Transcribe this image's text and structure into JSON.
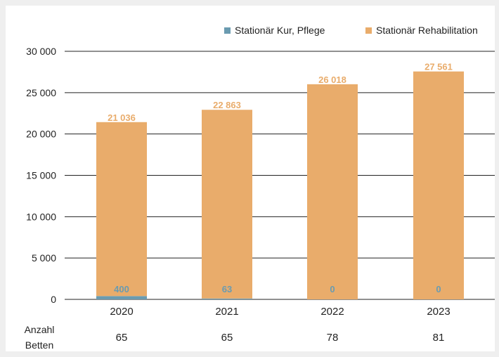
{
  "chart_data": {
    "type": "bar",
    "stacked": true,
    "categories": [
      "2020",
      "2021",
      "2022",
      "2023"
    ],
    "series": [
      {
        "name": "Stationär Kur, Pflege",
        "color": "#6a9bb0",
        "values": [
          400,
          63,
          0,
          0
        ],
        "labels": [
          "400",
          "63",
          "0",
          "0"
        ]
      },
      {
        "name": "Stationär Rehabilitation",
        "color": "#e9ac6b",
        "values": [
          21036,
          22863,
          26018,
          27561
        ],
        "labels": [
          "21 036",
          "22 863",
          "26 018",
          "27 561"
        ]
      }
    ],
    "ylim": [
      0,
      30000
    ],
    "yticks": [
      {
        "value": 0,
        "label": "0"
      },
      {
        "value": 5000,
        "label": "5 000"
      },
      {
        "value": 10000,
        "label": "10 000"
      },
      {
        "value": 15000,
        "label": "15 000"
      },
      {
        "value": 20000,
        "label": "20 000"
      },
      {
        "value": 25000,
        "label": "25 000"
      },
      {
        "value": 30000,
        "label": "30 000"
      }
    ],
    "grid": true,
    "legend": "top-right",
    "footer_row": {
      "label": [
        "Anzahl",
        "Betten"
      ],
      "values": [
        "65",
        "65",
        "78",
        "81"
      ]
    },
    "colors": {
      "background": "#efefef",
      "plot_background": "#ffffff",
      "gridline": "#222222",
      "text": "#222222"
    }
  }
}
